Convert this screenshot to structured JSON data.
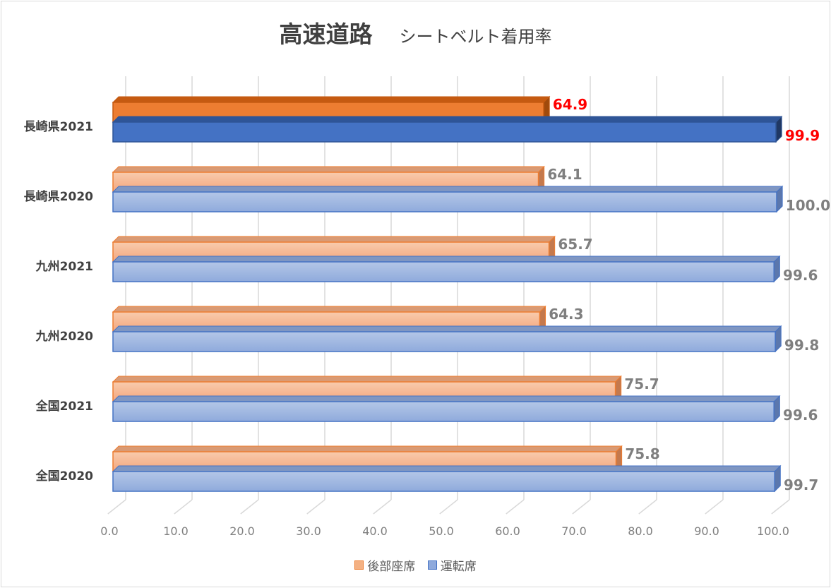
{
  "title": "高速道路",
  "subtitle": "シートベルト着用率",
  "colors": {
    "rear": "#f4b183",
    "rear_edge": "#ed7d31",
    "rear_hl": "#ed7d31",
    "driver": "#8faadc",
    "driver_edge": "#4472c4",
    "driver_hl": "#4472c4",
    "highlight_text": "#ff0000",
    "grid": "#d9d9d9"
  },
  "legend": {
    "rear": "後部座席",
    "driver": "運転席"
  },
  "chart_data": {
    "type": "bar",
    "orientation": "horizontal",
    "style": "3d",
    "categories": [
      "長崎県2021",
      "長崎県2020",
      "九州2021",
      "九州2020",
      "全国2021",
      "全国2020"
    ],
    "highlight_category": "長崎県2021",
    "series": [
      {
        "name": "後部座席",
        "values": [
          64.9,
          64.1,
          65.7,
          64.3,
          75.7,
          75.8
        ],
        "labels": [
          "64.9",
          "64.1",
          "65.7",
          "64.3",
          "75.7",
          "75.8"
        ]
      },
      {
        "name": "運転席",
        "values": [
          99.9,
          100.0,
          99.6,
          99.8,
          99.6,
          99.7
        ],
        "labels": [
          "99.9",
          "100.0",
          "99.6",
          "99.8",
          "99.6",
          "99.7"
        ]
      }
    ],
    "xlim": [
      0,
      100
    ],
    "xticks": [
      "0.0",
      "10.0",
      "20.0",
      "30.0",
      "40.0",
      "50.0",
      "60.0",
      "70.0",
      "80.0",
      "90.0",
      "100.0"
    ],
    "grid": true,
    "legend_position": "bottom"
  }
}
